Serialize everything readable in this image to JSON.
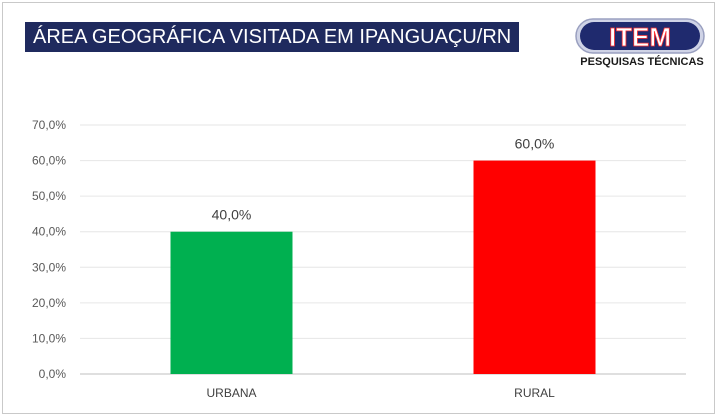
{
  "chart_data": {
    "type": "bar",
    "title": "ÁREA GEOGRÁFICA VISITADA EM IPANGUAÇU/RN",
    "categories": [
      "URBANA",
      "RURAL"
    ],
    "values": [
      40.0,
      60.0
    ],
    "value_labels": [
      "40,0%",
      "60,0%"
    ],
    "bar_colors": [
      "#00b050",
      "#ff0000"
    ],
    "ylim": [
      0,
      70
    ],
    "yticks": [
      0,
      10,
      20,
      30,
      40,
      50,
      60,
      70
    ],
    "ytick_labels": [
      "0,0%",
      "10,0%",
      "20,0%",
      "30,0%",
      "40,0%",
      "50,0%",
      "60,0%",
      "70,0%"
    ],
    "grid": true,
    "legend": "none"
  },
  "logo": {
    "name": "ITEM",
    "tagline": "PESQUISAS TÉCNICAS",
    "icon": "item-logo"
  }
}
